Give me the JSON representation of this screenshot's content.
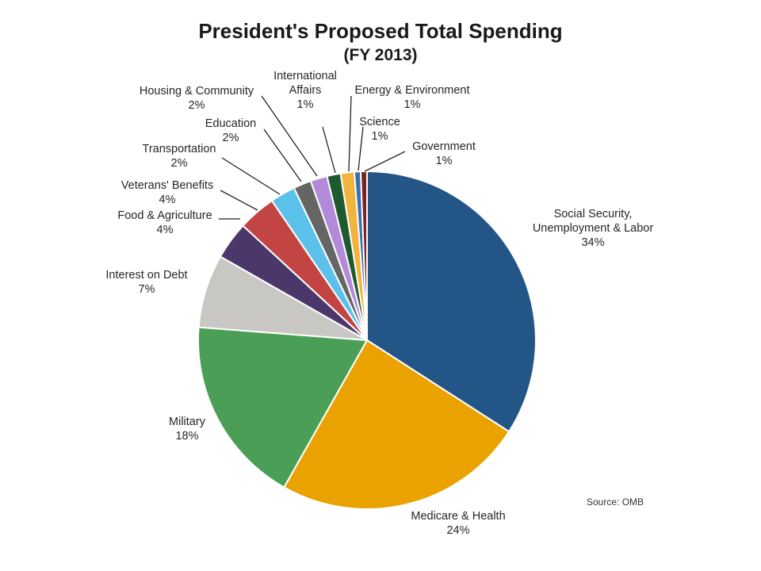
{
  "title": "President's Proposed Total Spending",
  "subtitle": "(FY 2013)",
  "source": "Source: OMB",
  "chart_data": {
    "type": "pie",
    "title": "President's Proposed Total Spending",
    "subtitle": "(FY 2013)",
    "slices": [
      {
        "name": "Social Security, Unemployment & Labor",
        "label": [
          "Social Security,",
          "Unemployment & Labor"
        ],
        "pct_text": "34%",
        "value": 34,
        "color": "#235687"
      },
      {
        "name": "Medicare & Health",
        "label": [
          "Medicare & Health"
        ],
        "pct_text": "24%",
        "value": 24,
        "color": "#e9a200"
      },
      {
        "name": "Military",
        "label": [
          "Military"
        ],
        "pct_text": "18%",
        "value": 18,
        "color": "#4b9e56"
      },
      {
        "name": "Interest on Debt",
        "label": [
          "Interest on Debt"
        ],
        "pct_text": "7%",
        "value": 7,
        "color": "#c9c7c4"
      },
      {
        "name": "Food & Agriculture",
        "label": [
          "Food & Agriculture"
        ],
        "pct_text": "4%",
        "value": 3.6,
        "color": "#4c376b"
      },
      {
        "name": "Veterans' Benefits",
        "label": [
          "Veterans' Benefits"
        ],
        "pct_text": "4%",
        "value": 3.6,
        "color": "#c24544"
      },
      {
        "name": "Transportation",
        "label": [
          "Transportation"
        ],
        "pct_text": "2%",
        "value": 2.4,
        "color": "#5bc1ea"
      },
      {
        "name": "Education",
        "label": [
          "Education"
        ],
        "pct_text": "2%",
        "value": 1.7,
        "color": "#656565"
      },
      {
        "name": "Housing & Community",
        "label": [
          "Housing & Community"
        ],
        "pct_text": "2%",
        "value": 1.6,
        "color": "#b38ad9"
      },
      {
        "name": "International Affairs",
        "label": [
          "International",
          "Affairs"
        ],
        "pct_text": "1%",
        "value": 1.3,
        "color": "#1e5a2e"
      },
      {
        "name": "Energy & Environment",
        "label": [
          "Energy & Environment"
        ],
        "pct_text": "1%",
        "value": 1.3,
        "color": "#f1b53d"
      },
      {
        "name": "Science",
        "label": [
          "Science"
        ],
        "pct_text": "1%",
        "value": 0.6,
        "color": "#3a6fb0"
      },
      {
        "name": "Government",
        "label": [
          "Government"
        ],
        "pct_text": "1%",
        "value": 0.6,
        "color": "#7a2222"
      }
    ]
  }
}
